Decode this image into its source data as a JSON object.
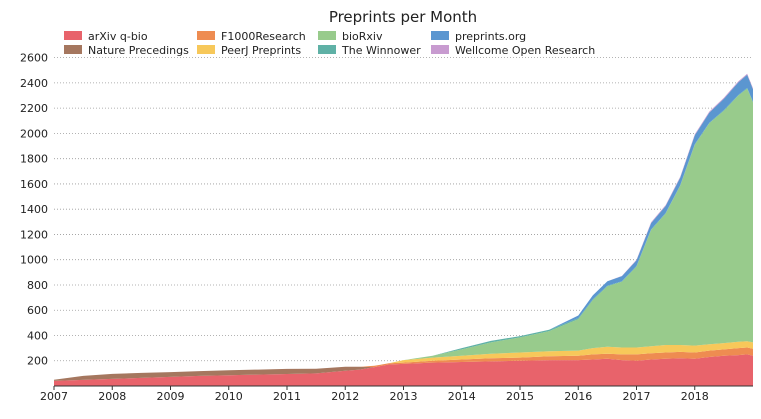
{
  "chart_data": {
    "type": "area",
    "stacked": true,
    "title": "Preprints per Month",
    "xlabel": "",
    "ylabel": "",
    "xlim": [
      2007.0,
      2019.0
    ],
    "ylim": [
      0,
      2700
    ],
    "grid": {
      "y": true,
      "x": false,
      "style": "dotted"
    },
    "legend_position": "top",
    "x_ticks": [
      "2007",
      "2008",
      "2009",
      "2010",
      "2011",
      "2012",
      "2013",
      "2014",
      "2015",
      "2016",
      "2017",
      "2018"
    ],
    "y_ticks": [
      200,
      400,
      600,
      800,
      1000,
      1200,
      1400,
      1600,
      1800,
      2000,
      2200,
      2400,
      2600
    ],
    "x": [
      2007.0,
      2007.5,
      2008.0,
      2008.5,
      2009.0,
      2009.5,
      2010.0,
      2010.5,
      2011.0,
      2011.5,
      2012.0,
      2012.25,
      2012.5,
      2012.75,
      2013.0,
      2013.5,
      2014.0,
      2014.5,
      2015.0,
      2015.5,
      2016.0,
      2016.25,
      2016.5,
      2016.75,
      2017.0,
      2017.25,
      2017.5,
      2017.75,
      2018.0,
      2018.25,
      2018.5,
      2018.75,
      2018.9,
      2019.0
    ],
    "series": [
      {
        "name": "arXiv q-bio",
        "color": "#e8636b",
        "values": [
          40,
          48,
          56,
          64,
          72,
          80,
          85,
          90,
          95,
          100,
          120,
          130,
          150,
          170,
          175,
          185,
          190,
          195,
          200,
          205,
          205,
          210,
          215,
          205,
          200,
          210,
          215,
          220,
          215,
          230,
          240,
          245,
          250,
          240
        ]
      },
      {
        "name": "Nature Precedings",
        "color": "#a5775f",
        "values": [
          10,
          32,
          40,
          40,
          38,
          38,
          40,
          40,
          40,
          36,
          32,
          22,
          0,
          0,
          0,
          0,
          0,
          0,
          0,
          0,
          0,
          0,
          0,
          0,
          0,
          0,
          0,
          0,
          0,
          0,
          0,
          0,
          0,
          0
        ]
      },
      {
        "name": "F1000Research",
        "color": "#ee8c51",
        "values": [
          0,
          0,
          0,
          0,
          0,
          0,
          0,
          0,
          0,
          0,
          0,
          0,
          10,
          10,
          10,
          15,
          20,
          25,
          25,
          30,
          35,
          40,
          40,
          45,
          50,
          50,
          50,
          50,
          50,
          50,
          50,
          55,
          55,
          55
        ]
      },
      {
        "name": "PeerJ Preprints",
        "color": "#f7c85a",
        "values": [
          0,
          0,
          0,
          0,
          0,
          0,
          0,
          0,
          0,
          0,
          0,
          0,
          0,
          0,
          20,
          25,
          30,
          35,
          40,
          40,
          40,
          50,
          55,
          55,
          55,
          55,
          60,
          55,
          55,
          50,
          50,
          50,
          50,
          50
        ]
      },
      {
        "name": "bioRxiv",
        "color": "#98cb8c",
        "values": [
          0,
          0,
          0,
          0,
          0,
          0,
          0,
          0,
          0,
          0,
          0,
          0,
          0,
          0,
          0,
          15,
          50,
          90,
          120,
          160,
          250,
          380,
          480,
          520,
          640,
          920,
          1040,
          1260,
          1590,
          1750,
          1840,
          1950,
          2000,
          1900
        ]
      },
      {
        "name": "The Winnower",
        "color": "#5fb1a6",
        "values": [
          0,
          0,
          0,
          0,
          0,
          0,
          0,
          0,
          0,
          0,
          0,
          0,
          0,
          0,
          0,
          0,
          10,
          12,
          10,
          10,
          8,
          7,
          5,
          5,
          5,
          5,
          5,
          5,
          5,
          5,
          5,
          5,
          5,
          5
        ]
      },
      {
        "name": "preprints.org",
        "color": "#5b96d0",
        "values": [
          0,
          0,
          0,
          0,
          0,
          0,
          0,
          0,
          0,
          0,
          0,
          0,
          0,
          0,
          0,
          0,
          0,
          0,
          0,
          0,
          20,
          30,
          35,
          40,
          45,
          50,
          55,
          60,
          70,
          80,
          90,
          100,
          105,
          100
        ]
      },
      {
        "name": "Wellcome Open Research",
        "color": "#c89bd0",
        "values": [
          0,
          0,
          0,
          0,
          0,
          0,
          0,
          0,
          0,
          0,
          0,
          0,
          0,
          0,
          0,
          0,
          0,
          0,
          0,
          0,
          0,
          0,
          0,
          2,
          5,
          6,
          7,
          7,
          8,
          8,
          8,
          8,
          8,
          8
        ]
      }
    ]
  }
}
